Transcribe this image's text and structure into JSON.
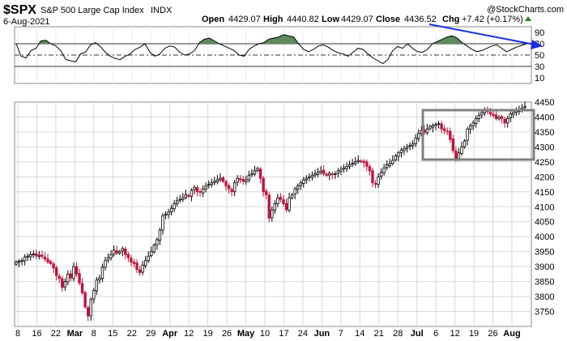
{
  "header": {
    "symbol": "$SPX",
    "name": "S&P 500 Large Cap Index",
    "exchange": "INDX",
    "date": "6-Aug-2021",
    "watermark": "@StockCharts.com",
    "ohlc": {
      "open_label": "Open",
      "open": "4429.07",
      "high_label": "High",
      "high": "4440.82",
      "low_label": "Low",
      "low": "4429.07",
      "close_label": "Close",
      "close": "4436.52",
      "chg_label": "Chg",
      "chg": "+7.42 (+0.17%)"
    }
  },
  "colors": {
    "up": "#000000",
    "down": "#c0143c",
    "rsi_fill": "#5e8a5e",
    "arrow": "#1a2fe0",
    "box": "#808080",
    "grid": "#d8d8d8"
  },
  "chart_data": [
    {
      "type": "line",
      "panel": "indicator",
      "ylim": [
        0,
        100
      ],
      "yticks": [
        "90",
        "70",
        "50",
        "30",
        "10"
      ],
      "reference_lines": [
        70,
        50,
        30
      ],
      "values": [
        70,
        48,
        45,
        58,
        62,
        75,
        76,
        70,
        66,
        58,
        42,
        40,
        38,
        52,
        55,
        68,
        72,
        65,
        55,
        48,
        44,
        42,
        48,
        52,
        60,
        64,
        70,
        55,
        48,
        52,
        62,
        66,
        64,
        55,
        50,
        52,
        58,
        72,
        78,
        80,
        75,
        70,
        66,
        62,
        58,
        50,
        48,
        60,
        66,
        70,
        72,
        78,
        80,
        82,
        86,
        84,
        82,
        70,
        60,
        56,
        60,
        66,
        68,
        64,
        58,
        54,
        52,
        48,
        55,
        62,
        60,
        52,
        45,
        40,
        35,
        42,
        58,
        65,
        62,
        70,
        62,
        56,
        55,
        60,
        70,
        74,
        78,
        82,
        84,
        80,
        72,
        66,
        60,
        56,
        58,
        62,
        66,
        68,
        62,
        56,
        60,
        64,
        67,
        70
      ]
    },
    {
      "type": "candlestick",
      "panel": "price",
      "ylim": [
        3700,
        4450
      ],
      "yticks": [
        "4450",
        "4400",
        "4350",
        "4300",
        "4250",
        "4200",
        "4150",
        "4100",
        "4050",
        "4000",
        "3950",
        "3900",
        "3850",
        "3800",
        "3750"
      ],
      "x_tick_labels": [
        "8",
        "16",
        "22",
        "Mar",
        "8",
        "15",
        "22",
        "29",
        "Apr",
        "12",
        "19",
        "26",
        "May",
        "10",
        "17",
        "24",
        "Jun",
        "7",
        "14",
        "21",
        "28",
        "Jul",
        "6",
        "12",
        "19",
        "26",
        "Aug"
      ],
      "close": [
        3915,
        3918,
        3920,
        3932,
        3935,
        3940,
        3942,
        3935,
        3938,
        3934,
        3925,
        3915,
        3910,
        3895,
        3870,
        3860,
        3830,
        3850,
        3875,
        3862,
        3900,
        3875,
        3845,
        3812,
        3765,
        3735,
        3790,
        3820,
        3855,
        3862,
        3898,
        3920,
        3930,
        3940,
        3955,
        3945,
        3950,
        3960,
        3940,
        3930,
        3915,
        3910,
        3890,
        3880,
        3905,
        3920,
        3935,
        3950,
        3972,
        3990,
        4022,
        4070,
        4075,
        4082,
        4095,
        4110,
        4120,
        4125,
        4130,
        4140,
        4135,
        4155,
        4165,
        4150,
        4148,
        4160,
        4170,
        4175,
        4180,
        4185,
        4190,
        4195,
        4185,
        4170,
        4160,
        4150,
        4180,
        4195,
        4190,
        4185,
        4190,
        4205,
        4210,
        4220,
        4228,
        4195,
        4150,
        4140,
        4062,
        4090,
        4110,
        4130,
        4125,
        4110,
        4090,
        4130,
        4140,
        4160,
        4170,
        4180,
        4190,
        4195,
        4200,
        4205,
        4210,
        4215,
        4220,
        4210,
        4205,
        4212,
        4208,
        4210,
        4220,
        4225,
        4230,
        4235,
        4240,
        4245,
        4250,
        4255,
        4252,
        4248,
        4235,
        4220,
        4180,
        4175,
        4200,
        4215,
        4230,
        4240,
        4245,
        4255,
        4270,
        4280,
        4290,
        4295,
        4300,
        4305,
        4310,
        4330,
        4345,
        4355,
        4348,
        4360,
        4368,
        4372,
        4375,
        4378,
        4360,
        4355,
        4352,
        4325,
        4288,
        4260,
        4280,
        4300,
        4320,
        4360,
        4370,
        4380,
        4395,
        4405,
        4415,
        4420,
        4418,
        4410,
        4405,
        4395,
        4400,
        4395,
        4380,
        4395,
        4410,
        4415,
        4420,
        4425,
        4430,
        4436
      ]
    }
  ]
}
